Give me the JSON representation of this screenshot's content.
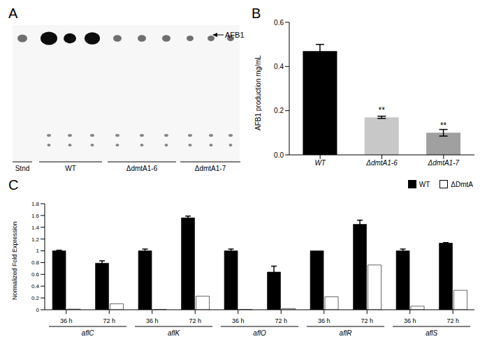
{
  "image": {
    "panel": "A",
    "arrow_label": "AFB1",
    "lane_labels": [
      "Stnd",
      "WT",
      "ΔdmtA1-6",
      "ΔdmtA1-7"
    ]
  },
  "chart_data": [
    {
      "type": "bar",
      "title": "B",
      "categories": [
        "WT",
        "ΔdmtA1-6",
        "ΔdmtA1-7"
      ],
      "values": [
        0.47,
        0.17,
        0.1
      ],
      "errors": [
        0.03,
        0.005,
        0.015
      ],
      "colors": [
        "#000000",
        "#c8c8c8",
        "#a0a0a0"
      ],
      "y_label": "AFB1 production mg/mL",
      "ylim": [
        0,
        0.6
      ],
      "yticks": [
        {
          "value": 0,
          "label": "0.0"
        },
        {
          "value": 0.2,
          "label": "0.2"
        },
        {
          "value": 0.4,
          "label": "0.4"
        },
        {
          "value": 0.6,
          "label": "0.6"
        }
      ],
      "annotations": [
        {
          "category": "ΔdmtA1-6",
          "text": "**"
        },
        {
          "category": "ΔdmtA1-7",
          "text": "**"
        }
      ]
    },
    {
      "type": "bar",
      "title": "C",
      "categories": [
        "36 h",
        "72 h",
        "36 h",
        "72 h",
        "36 h",
        "72 h",
        "36 h",
        "72 h",
        "36 h",
        "72 h"
      ],
      "group_labels": [
        "aflC",
        "aflK",
        "aflO",
        "aflR",
        "aflS"
      ],
      "series": [
        {
          "name": "WT",
          "color": "#000000",
          "values": [
            1.0,
            0.79,
            1.0,
            1.56,
            1.0,
            0.64,
            1.0,
            1.45,
            1.0,
            1.13
          ],
          "errors": [
            0.01,
            0.04,
            0.03,
            0.03,
            0.03,
            0.1,
            0,
            0.07,
            0.03,
            0.01
          ]
        },
        {
          "name": "ΔDmtA",
          "color": "#ffffff",
          "values": [
            0.01,
            0.1,
            0.005,
            0.23,
            0.005,
            0.02,
            0.22,
            0.76,
            0.06,
            0.33
          ]
        }
      ],
      "y_label": "Normalized Fold Expression",
      "ylim": [
        0,
        1.8
      ],
      "yticks": [
        0,
        0.2,
        0.4,
        0.6,
        0.8,
        1,
        1.2,
        1.4,
        1.6,
        1.8
      ],
      "legend": "top-right"
    }
  ]
}
